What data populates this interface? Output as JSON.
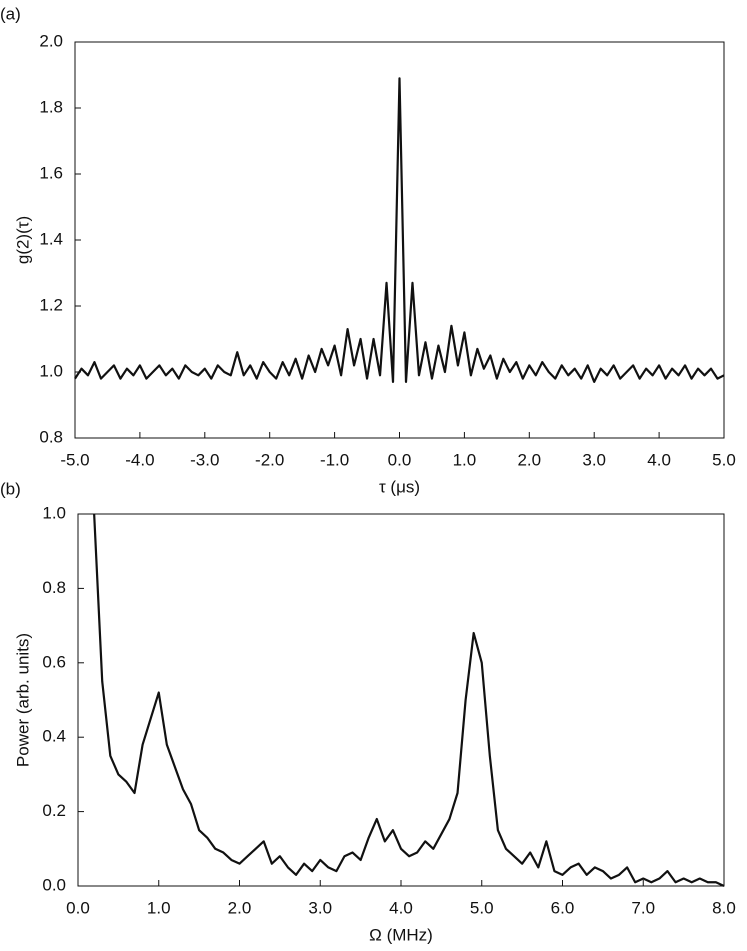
{
  "chart_data": [
    {
      "type": "line",
      "label": "(a)",
      "xlabel": "τ (μs)",
      "ylabel": "g(2)(τ)",
      "color": "#111111",
      "xlim": [
        -5,
        5
      ],
      "ylim": [
        0.8,
        2.0
      ],
      "xticks": [
        {
          "value": -5,
          "label": "-5.0"
        },
        {
          "value": -4,
          "label": "-4.0"
        },
        {
          "value": -3,
          "label": "-3.0"
        },
        {
          "value": -2,
          "label": "-2.0"
        },
        {
          "value": -1,
          "label": "-1.0"
        },
        {
          "value": 0,
          "label": "0.0"
        },
        {
          "value": 1,
          "label": "1.0"
        },
        {
          "value": 2,
          "label": "2.0"
        },
        {
          "value": 3,
          "label": "3.0"
        },
        {
          "value": 4,
          "label": "4.0"
        },
        {
          "value": 5,
          "label": "5.0"
        }
      ],
      "yticks": [
        0.8,
        1,
        1.2,
        1.4,
        1.6,
        1.8,
        2
      ],
      "x": [
        -5.0,
        -4.9,
        -4.8,
        -4.7,
        -4.6,
        -4.5,
        -4.4,
        -4.3,
        -4.2,
        -4.1,
        -4.0,
        -3.9,
        -3.8,
        -3.7,
        -3.6,
        -3.5,
        -3.4,
        -3.3,
        -3.2,
        -3.1,
        -3.0,
        -2.9,
        -2.8,
        -2.7,
        -2.6,
        -2.5,
        -2.4,
        -2.3,
        -2.2,
        -2.1,
        -2.0,
        -1.9,
        -1.8,
        -1.7,
        -1.6,
        -1.5,
        -1.4,
        -1.3,
        -1.2,
        -1.1,
        -1.0,
        -0.9,
        -0.8,
        -0.7,
        -0.6,
        -0.5,
        -0.4,
        -0.3,
        -0.2,
        -0.1,
        0.0,
        0.1,
        0.2,
        0.3,
        0.4,
        0.5,
        0.6,
        0.7,
        0.8,
        0.9,
        1.0,
        1.1,
        1.2,
        1.3,
        1.4,
        1.5,
        1.6,
        1.7,
        1.8,
        1.9,
        2.0,
        2.1,
        2.2,
        2.3,
        2.4,
        2.5,
        2.6,
        2.7,
        2.8,
        2.9,
        3.0,
        3.1,
        3.2,
        3.3,
        3.4,
        3.5,
        3.6,
        3.7,
        3.8,
        3.9,
        4.0,
        4.1,
        4.2,
        4.3,
        4.4,
        4.5,
        4.6,
        4.7,
        4.8,
        4.9,
        5.0
      ],
      "values": [
        0.98,
        1.01,
        0.99,
        1.03,
        0.98,
        1.0,
        1.02,
        0.98,
        1.01,
        0.99,
        1.02,
        0.98,
        1.0,
        1.02,
        0.99,
        1.01,
        0.98,
        1.02,
        1.0,
        0.99,
        1.01,
        0.98,
        1.02,
        1.0,
        0.99,
        1.06,
        0.99,
        1.02,
        0.98,
        1.03,
        1.0,
        0.98,
        1.03,
        0.99,
        1.04,
        0.98,
        1.05,
        1.0,
        1.07,
        1.02,
        1.08,
        0.99,
        1.13,
        1.02,
        1.1,
        0.98,
        1.1,
        0.99,
        1.27,
        0.97,
        1.89,
        0.97,
        1.27,
        0.99,
        1.09,
        0.98,
        1.08,
        1.0,
        1.14,
        1.02,
        1.12,
        0.99,
        1.07,
        1.01,
        1.05,
        0.98,
        1.04,
        1.0,
        1.03,
        0.98,
        1.02,
        0.99,
        1.03,
        1.0,
        0.98,
        1.02,
        0.99,
        1.01,
        0.98,
        1.02,
        0.97,
        1.01,
        0.99,
        1.02,
        0.98,
        1.0,
        1.02,
        0.98,
        1.01,
        0.99,
        1.02,
        0.98,
        1.01,
        0.99,
        1.02,
        0.98,
        1.01,
        0.99,
        1.01,
        0.98,
        0.99
      ]
    },
    {
      "type": "line",
      "label": "(b)",
      "xlabel": "Ω (MHz)",
      "ylabel": "Power (arb. units)",
      "color": "#111111",
      "xlim": [
        0,
        8
      ],
      "ylim": [
        0,
        1
      ],
      "xticks": [
        {
          "value": 0,
          "label": "0.0"
        },
        {
          "value": 1,
          "label": "1.0"
        },
        {
          "value": 2,
          "label": "2.0"
        },
        {
          "value": 3,
          "label": "3.0"
        },
        {
          "value": 4,
          "label": "4.0"
        },
        {
          "value": 5,
          "label": "5.0"
        },
        {
          "value": 6,
          "label": "6.0"
        },
        {
          "value": 7,
          "label": "7.0"
        },
        {
          "value": 8,
          "label": "8.0"
        }
      ],
      "yticks": [
        {
          "value": 0,
          "label": "0.0"
        },
        {
          "value": 0.2,
          "label": "0.2"
        },
        {
          "value": 0.4,
          "label": "0.4"
        },
        {
          "value": 0.6,
          "label": "0.6"
        },
        {
          "value": 0.8,
          "label": "0.8"
        },
        {
          "value": 1,
          "label": "1.0"
        }
      ],
      "x": [
        0.2,
        0.3,
        0.4,
        0.5,
        0.6,
        0.7,
        0.8,
        0.9,
        1.0,
        1.1,
        1.2,
        1.3,
        1.4,
        1.5,
        1.6,
        1.7,
        1.8,
        1.9,
        2.0,
        2.1,
        2.2,
        2.3,
        2.4,
        2.5,
        2.6,
        2.7,
        2.8,
        2.9,
        3.0,
        3.1,
        3.2,
        3.3,
        3.4,
        3.5,
        3.6,
        3.7,
        3.8,
        3.9,
        4.0,
        4.1,
        4.2,
        4.3,
        4.4,
        4.5,
        4.6,
        4.7,
        4.8,
        4.9,
        5.0,
        5.1,
        5.2,
        5.3,
        5.4,
        5.5,
        5.6,
        5.7,
        5.8,
        5.9,
        6.0,
        6.1,
        6.2,
        6.3,
        6.4,
        6.5,
        6.6,
        6.7,
        6.8,
        6.9,
        7.0,
        7.1,
        7.2,
        7.3,
        7.4,
        7.5,
        7.6,
        7.7,
        7.8,
        7.9,
        8.0
      ],
      "values": [
        1.0,
        0.55,
        0.35,
        0.3,
        0.28,
        0.25,
        0.38,
        0.45,
        0.52,
        0.38,
        0.32,
        0.26,
        0.22,
        0.15,
        0.13,
        0.1,
        0.09,
        0.07,
        0.06,
        0.08,
        0.1,
        0.12,
        0.06,
        0.08,
        0.05,
        0.03,
        0.06,
        0.04,
        0.07,
        0.05,
        0.04,
        0.08,
        0.09,
        0.07,
        0.13,
        0.18,
        0.12,
        0.15,
        0.1,
        0.08,
        0.09,
        0.12,
        0.1,
        0.14,
        0.18,
        0.25,
        0.5,
        0.68,
        0.6,
        0.35,
        0.15,
        0.1,
        0.08,
        0.06,
        0.09,
        0.05,
        0.12,
        0.04,
        0.03,
        0.05,
        0.06,
        0.03,
        0.05,
        0.04,
        0.02,
        0.03,
        0.05,
        0.01,
        0.02,
        0.01,
        0.02,
        0.04,
        0.01,
        0.02,
        0.01,
        0.02,
        0.01,
        0.01,
        0.0
      ]
    }
  ]
}
